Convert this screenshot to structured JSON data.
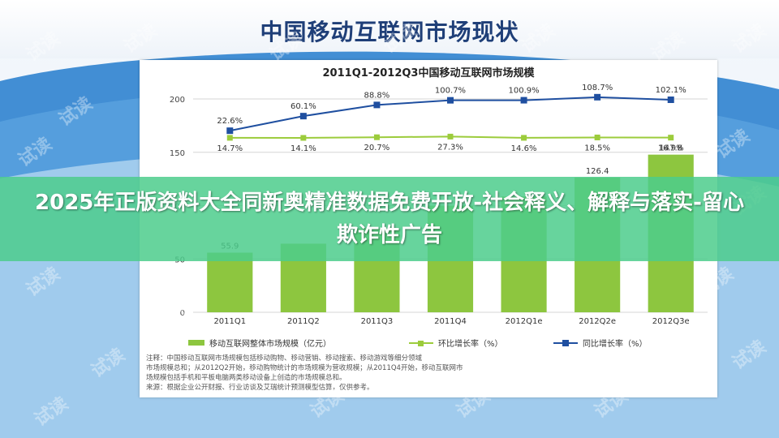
{
  "page": {
    "title": "中国移动互联网市场现状"
  },
  "banner": {
    "text": "2025年正版资料大全同新奥精准数据免费开放-社会释义、解释与落实-留心欺诈性广告"
  },
  "watermark": {
    "text": "试读"
  },
  "colors": {
    "bar": "#8dc63f",
    "mom_line": "#9ccc3c",
    "yoy_line": "#1f4fa0",
    "banner": "#4ccd8c",
    "title": "#1f3f78"
  },
  "chart_data": {
    "type": "bar",
    "title": "2011Q1-2012Q3中国移动互联网市场规模",
    "categories": [
      "2011Q1",
      "2011Q2",
      "2011Q3",
      "2011Q4",
      "2012Q1e",
      "2012Q2e",
      "2012Q3e"
    ],
    "ylim": [
      0,
      200
    ],
    "yticks": [
      "200",
      "150",
      "100",
      "50",
      "0"
    ],
    "series": [
      {
        "name": "移动互联网整体市场规模（亿元）",
        "type": "bar",
        "values": [
          55.9,
          64.3,
          78.4,
          99.8,
          108.5,
          126.4,
          147.8
        ],
        "value_labels": [
          "55.9",
          "",
          "",
          "",
          "",
          "126.4",
          "147.8"
        ]
      },
      {
        "name": "环比增长率（%）",
        "type": "line",
        "values": [
          14.7,
          14.1,
          20.7,
          27.3,
          14.6,
          18.5,
          16.9
        ],
        "value_labels": [
          "14.7%",
          "14.1%",
          "20.7%",
          "27.3%",
          "14.6%",
          "18.5%",
          "16.9%"
        ]
      },
      {
        "name": "同比增长率（%）",
        "type": "line",
        "values": [
          22.6,
          60.1,
          88.8,
          100.7,
          100.9,
          108.7,
          102.1
        ],
        "value_labels": [
          "22.6%",
          "60.1%",
          "88.8%",
          "100.7%",
          "100.9%",
          "108.7%",
          "102.1%"
        ]
      }
    ],
    "notes": [
      "注释：中国移动互联网市场规模包括移动购物、移动营销、移动搜索、移动游戏等细分领域",
      "市场规模总和；从2012Q2开始，移动购物统计的市场规模为营收规模；从2011Q4开始，移动互联网市",
      "场规模包括手机和平板电脑两类移动设备上创造的市场规模总和。",
      "来源：根据企业公开财报、行业访谈及艾瑞统计预测模型估算，仅供参考。"
    ]
  }
}
